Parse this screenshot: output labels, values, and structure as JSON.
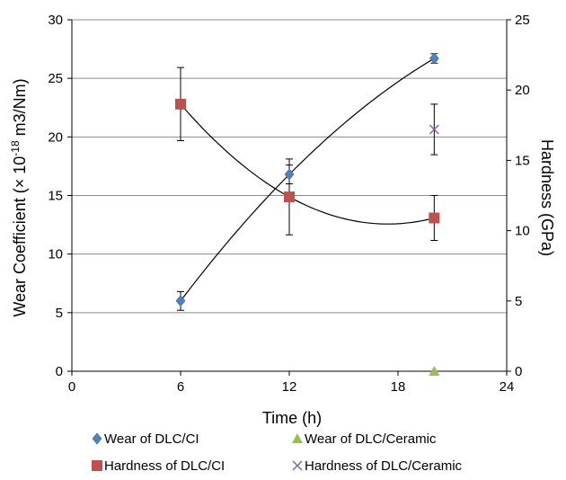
{
  "chart_data": {
    "type": "scatter",
    "xlabel": "Time (h)",
    "ylabel_left": {
      "prefix": "Wear Coefficient (× 10",
      "exponent": "-18",
      "suffix": " m3/Nm)"
    },
    "ylabel_right": "Hardness (GPa)",
    "xlim": [
      0,
      24
    ],
    "xticks": [
      0,
      6,
      12,
      18,
      24
    ],
    "ylim_left": [
      0,
      30
    ],
    "yticks_left": [
      0,
      5,
      10,
      15,
      20,
      25,
      30
    ],
    "ylim_right": [
      0,
      25
    ],
    "yticks_right": [
      0,
      5,
      10,
      15,
      20,
      25
    ],
    "grid": "horizontal",
    "legend_position": "bottom",
    "series": [
      {
        "name": "Wear of DLC/CI",
        "axis": "left",
        "marker": "diamond",
        "color": "#4f81bd",
        "trendline": true,
        "x": [
          6,
          12,
          20
        ],
        "y": [
          6.0,
          16.8,
          26.7
        ],
        "err": [
          0.8,
          0.8,
          0.4
        ]
      },
      {
        "name": "Wear of DLC/Ceramic",
        "axis": "left",
        "marker": "triangle",
        "color": "#9bbb59",
        "trendline": false,
        "x": [
          20
        ],
        "y": [
          0
        ],
        "err": [
          0
        ]
      },
      {
        "name": "Hardness of DLC/CI",
        "axis": "right",
        "marker": "square",
        "color": "#c0504d",
        "trendline": true,
        "x": [
          6,
          12,
          20
        ],
        "y": [
          19.0,
          12.4,
          10.9
        ],
        "err": [
          2.6,
          2.7,
          1.6
        ]
      },
      {
        "name": "Hardness of DLC/Ceramic",
        "axis": "right",
        "marker": "x",
        "color": "#8064a2",
        "trendline": false,
        "x": [
          20
        ],
        "y": [
          17.2
        ],
        "err": [
          1.8
        ]
      }
    ]
  }
}
